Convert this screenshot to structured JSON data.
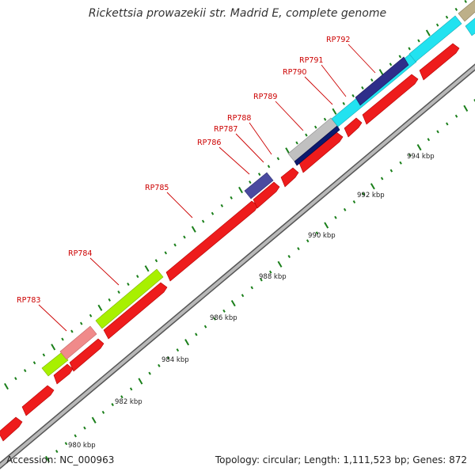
{
  "title": "Rickettsia prowazekii str. Madrid E, complete genome",
  "footer": {
    "accession": "Accession: NC_000963",
    "topology": "Topology: circular; Length: 1,111,523 bp; Genes: 872"
  },
  "colors": {
    "cds": "#ee1c1c",
    "backbone": "#999999",
    "gene_label": "#cc0000",
    "tick": "#1a7f1a"
  },
  "kbp_labels": [
    "980 kbp",
    "982 kbp",
    "984 kbp",
    "986 kbp",
    "988 kbp",
    "990 kbp",
    "992 kbp",
    "994 kbp"
  ],
  "gene_labels": [
    "RP783",
    "RP784",
    "RP785",
    "RP786",
    "RP787",
    "RP788",
    "RP789",
    "RP790",
    "RP791",
    "RP792"
  ]
}
